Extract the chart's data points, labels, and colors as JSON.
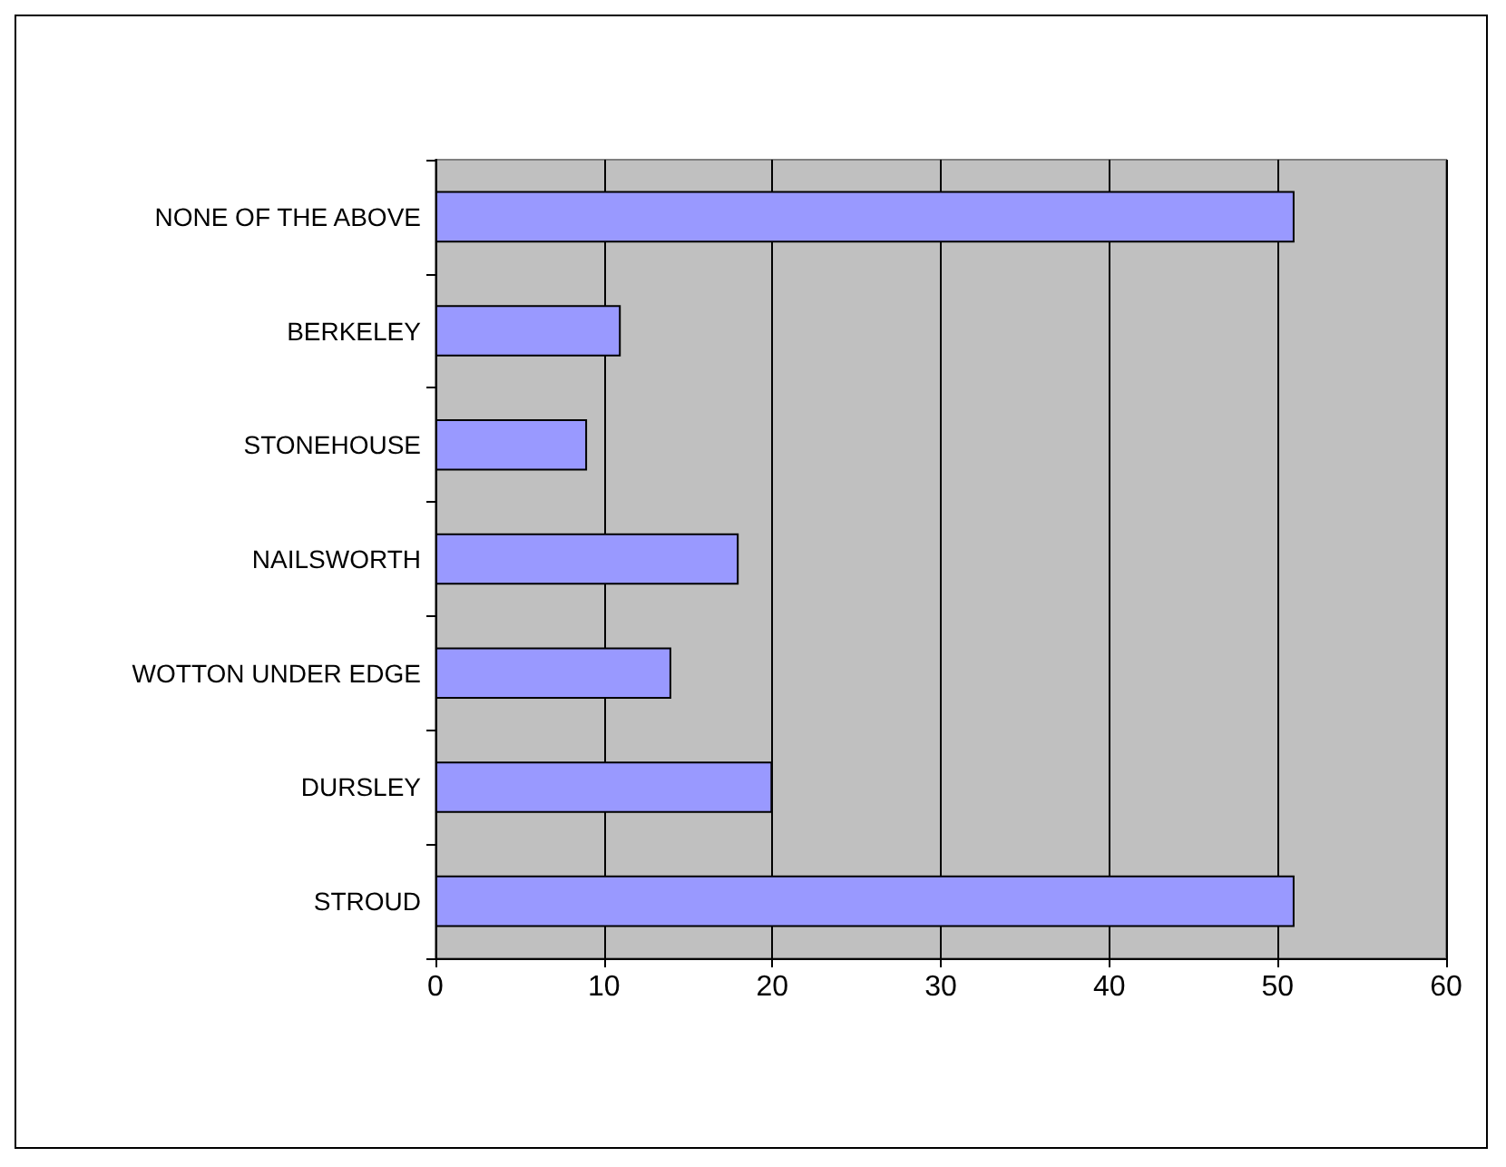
{
  "chart_data": {
    "type": "bar",
    "orientation": "horizontal",
    "categories": [
      "NONE OF THE ABOVE",
      "BERKELEY",
      "STONEHOUSE",
      "NAILSWORTH",
      "WOTTON UNDER EDGE",
      "DURSLEY",
      "STROUD"
    ],
    "values": [
      51,
      11,
      9,
      18,
      14,
      20,
      51
    ],
    "color": "#9999ff",
    "xlim": [
      0,
      60
    ],
    "xticks": [
      0,
      10,
      20,
      30,
      40,
      50,
      60
    ],
    "grid": "x"
  }
}
